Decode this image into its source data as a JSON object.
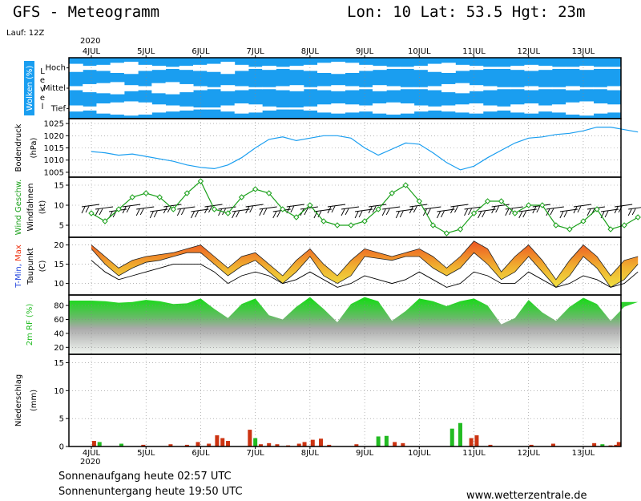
{
  "header": {
    "title": "GFS - Meteogramm",
    "location": "Lon: 10 Lat: 53.5 Hgt: 23m",
    "run": "Lauf: 12Z"
  },
  "footer": {
    "sunrise": "Sonnenaufgang heute 02:57 UTC",
    "sunset": "Sonnenuntergang heute 19:50 UTC",
    "website": "www.wetterzentrale.de"
  },
  "colors": {
    "cloud": "#1a9ef0",
    "pressure": "#1a9ef0",
    "wind": "#1aa01a",
    "tmin": "#2244dd",
    "tmax": "#ee3311",
    "humidity": "#22bb22",
    "precip_red": "#cc3311",
    "precip_green": "#22bb22",
    "grid": "#888888"
  },
  "chart_data": [
    {
      "type": "heatmap",
      "panel": "clouds",
      "ylabel": "Wolken (%)",
      "level_label": "Level",
      "levels": [
        "Hoch",
        "Mittel",
        "Tief"
      ],
      "x_dates": [
        "4JUL",
        "5JUL",
        "6JUL",
        "7JUL",
        "8JUL",
        "9JUL",
        "10JUL",
        "11JUL",
        "12JUL",
        "13JUL"
      ],
      "year": "2020",
      "clear_fraction_high": [
        0.4,
        0.2,
        0.3,
        0.5,
        0.6,
        0.3,
        0.2,
        0.1,
        0.2,
        0.3,
        0.4,
        0.6,
        0.3,
        0.1,
        0.2,
        0.1,
        0.2,
        0.3,
        0.5,
        0.6,
        0.5,
        0.3,
        0.2,
        0.1,
        0.1,
        0.2,
        0.4,
        0.5,
        0.3,
        0.2,
        0.1,
        0.1,
        0.2,
        0.3,
        0.2,
        0.1,
        0.1,
        0.2,
        0.1,
        0.1
      ],
      "clear_fraction_mid": [
        0.2,
        0.4,
        0.5,
        0.6,
        0.3,
        0.2,
        0.5,
        0.6,
        0.4,
        0.2,
        0.1,
        0.3,
        0.2,
        0.1,
        0.1,
        0.2,
        0.3,
        0.1,
        0.2,
        0.3,
        0.2,
        0.1,
        0.3,
        0.2,
        0.1,
        0.1,
        0.2,
        0.4,
        0.5,
        0.3,
        0.2,
        0.1,
        0.1,
        0.2,
        0.1,
        0.1,
        0.2,
        0.1,
        0.1,
        0.2
      ],
      "clear_fraction_low": [
        0.3,
        0.2,
        0.5,
        0.6,
        0.7,
        0.6,
        0.4,
        0.3,
        0.2,
        0.1,
        0.1,
        0.3,
        0.5,
        0.4,
        0.2,
        0.1,
        0.1,
        0.2,
        0.4,
        0.5,
        0.4,
        0.3,
        0.5,
        0.6,
        0.5,
        0.3,
        0.2,
        0.3,
        0.4,
        0.5,
        0.3,
        0.2,
        0.4,
        0.5,
        0.3,
        0.4,
        0.6,
        0.7,
        0.5,
        0.4
      ]
    },
    {
      "type": "line",
      "panel": "pressure",
      "ylabel": "Bodendruck",
      "unit": "(hPa)",
      "ylim": [
        1003,
        1027
      ],
      "yticks": [
        1005,
        1010,
        1015,
        1020,
        1025
      ],
      "x_days": [
        0,
        0.25,
        0.5,
        0.75,
        1,
        1.25,
        1.5,
        1.75,
        2,
        2.25,
        2.5,
        2.75,
        3,
        3.25,
        3.5,
        3.75,
        4,
        4.25,
        4.5,
        4.75,
        5,
        5.25,
        5.5,
        5.75,
        6,
        6.25,
        6.5,
        6.75,
        7,
        7.25,
        7.5,
        7.75,
        8,
        8.25,
        8.5,
        8.75,
        9,
        9.25,
        9.5,
        9.75,
        10
      ],
      "values": [
        1013.5,
        1013,
        1012,
        1012.5,
        1011.5,
        1010.5,
        1009.5,
        1008,
        1007,
        1006.5,
        1008,
        1011,
        1015,
        1018.5,
        1019.5,
        1018,
        1019,
        1020,
        1020,
        1019,
        1015,
        1012,
        1014.5,
        1017,
        1016.5,
        1013,
        1009,
        1006,
        1007.5,
        1011,
        1014,
        1017,
        1019,
        1019.5,
        1020.5,
        1021,
        1022,
        1023.5,
        1023.5,
        1022.5,
        1021.5
      ]
    },
    {
      "type": "line",
      "panel": "wind",
      "ylabel": "Wind Geschw.",
      "ylabel2": "Windfahnen",
      "unit": "(kt)",
      "ylim": [
        2,
        17
      ],
      "yticks": [
        5,
        10,
        15
      ],
      "x_days": [
        0,
        0.25,
        0.5,
        0.75,
        1,
        1.25,
        1.5,
        1.75,
        2,
        2.25,
        2.5,
        2.75,
        3,
        3.25,
        3.5,
        3.75,
        4,
        4.25,
        4.5,
        4.75,
        5,
        5.25,
        5.5,
        5.75,
        6,
        6.25,
        6.5,
        6.75,
        7,
        7.25,
        7.5,
        7.75,
        8,
        8.25,
        8.5,
        8.75,
        9,
        9.25,
        9.5,
        9.75,
        10
      ],
      "values": [
        8,
        6,
        9,
        12,
        13,
        12,
        9,
        13,
        16,
        9,
        8,
        12,
        14,
        13,
        9,
        7,
        10,
        6,
        5,
        5,
        6,
        9,
        13,
        15,
        11,
        5,
        3,
        4,
        8,
        11,
        11,
        8,
        10,
        10,
        5,
        4,
        6,
        9,
        4,
        5,
        7
      ]
    },
    {
      "type": "area",
      "panel": "temperature",
      "ylabel": "T-Min, Max",
      "ylabel2": "Taupunkt",
      "unit": "(C)",
      "ylim": [
        7,
        22
      ],
      "yticks": [
        10,
        15,
        20
      ],
      "x_days": [
        0,
        0.25,
        0.5,
        0.75,
        1,
        1.25,
        1.5,
        1.75,
        2,
        2.25,
        2.5,
        2.75,
        3,
        3.25,
        3.5,
        3.75,
        4,
        4.25,
        4.5,
        4.75,
        5,
        5.25,
        5.5,
        5.75,
        6,
        6.25,
        6.5,
        6.75,
        7,
        7.25,
        7.5,
        7.75,
        8,
        8.25,
        8.5,
        8.75,
        9,
        9.25,
        9.5,
        9.75,
        10
      ],
      "tmax": [
        20,
        17,
        14,
        16,
        17,
        17.5,
        18,
        19,
        20,
        17,
        14,
        17,
        18,
        15,
        12,
        16,
        19,
        15,
        12,
        16,
        19,
        18,
        17,
        18,
        19,
        17,
        14,
        17,
        21,
        19,
        13,
        17,
        20,
        16,
        11,
        16,
        20,
        17,
        12,
        16,
        17
      ],
      "tmin": [
        19,
        15,
        12,
        14,
        15.5,
        16,
        17,
        18,
        18,
        15,
        12,
        14.5,
        16,
        13,
        10,
        13,
        17,
        12,
        10,
        12,
        17,
        16.5,
        16,
        17,
        17,
        14,
        12,
        14,
        18,
        15,
        11,
        13,
        17,
        13,
        9,
        12,
        17,
        14,
        9,
        11,
        15
      ],
      "dewpoint": [
        16,
        13,
        11,
        12,
        13,
        14,
        15,
        15,
        15,
        13,
        10,
        12,
        13,
        12,
        10,
        11,
        13,
        11,
        9,
        10,
        12,
        11,
        10,
        11,
        13,
        11,
        9,
        10,
        13,
        12,
        10,
        10,
        13,
        11,
        9,
        10,
        12,
        11,
        9,
        10,
        13
      ]
    },
    {
      "type": "area",
      "panel": "humidity",
      "ylabel": "2m RF (%)",
      "ylim": [
        10,
        95
      ],
      "yticks": [
        20,
        40,
        60,
        80
      ],
      "x_days": [
        0,
        0.25,
        0.5,
        0.75,
        1,
        1.25,
        1.5,
        1.75,
        2,
        2.25,
        2.5,
        2.75,
        3,
        3.25,
        3.5,
        3.75,
        4,
        4.25,
        4.5,
        4.75,
        5,
        5.25,
        5.5,
        5.75,
        6,
        6.25,
        6.5,
        6.75,
        7,
        7.25,
        7.5,
        7.75,
        8,
        8.25,
        8.5,
        8.75,
        9,
        9.25,
        9.5,
        9.75,
        10
      ],
      "values": [
        87,
        86,
        84,
        85,
        88,
        86,
        82,
        83,
        90,
        75,
        62,
        82,
        90,
        66,
        60,
        78,
        92,
        75,
        56,
        82,
        92,
        86,
        58,
        72,
        90,
        86,
        79,
        86,
        90,
        80,
        53,
        62,
        88,
        70,
        58,
        78,
        91,
        82,
        58,
        78,
        85
      ]
    },
    {
      "type": "bar",
      "panel": "precipitation",
      "ylabel": "Niederschlag",
      "unit": "(mm)",
      "ylim": [
        0,
        16.5
      ],
      "yticks": [
        0,
        5,
        10,
        15
      ],
      "x_days": [
        0.05,
        0.15,
        0.55,
        0.95,
        1.45,
        1.75,
        1.95,
        2.15,
        2.3,
        2.4,
        2.5,
        2.9,
        3.0,
        3.1,
        3.25,
        3.4,
        3.6,
        3.8,
        3.9,
        4.05,
        4.2,
        4.35,
        4.85,
        5.25,
        5.4,
        5.55,
        5.7,
        6.6,
        6.75,
        6.95,
        7.05,
        7.3,
        8.05,
        8.45,
        9.2,
        9.35,
        9.5,
        9.6,
        9.65
      ],
      "values": [
        1,
        0.8,
        0.5,
        0.3,
        0.4,
        0.3,
        0.8,
        0.5,
        2,
        1.5,
        1,
        3,
        1.5,
        0.4,
        0.6,
        0.4,
        0.2,
        0.5,
        0.8,
        1.2,
        1.4,
        0.3,
        0.4,
        1.8,
        1.9,
        0.8,
        0.6,
        3.2,
        4.2,
        1.5,
        2,
        0.3,
        0.3,
        0.5,
        0.6,
        0.4,
        0.2,
        0.3,
        0.8
      ],
      "colors": [
        "red",
        "green",
        "green",
        "red",
        "red",
        "red",
        "red",
        "red",
        "red",
        "red",
        "red",
        "red",
        "green",
        "red",
        "red",
        "red",
        "red",
        "red",
        "red",
        "red",
        "red",
        "red",
        "red",
        "green",
        "green",
        "red",
        "red",
        "green",
        "green",
        "red",
        "red",
        "red",
        "red",
        "red",
        "red",
        "green",
        "red",
        "red",
        "red"
      ]
    }
  ]
}
